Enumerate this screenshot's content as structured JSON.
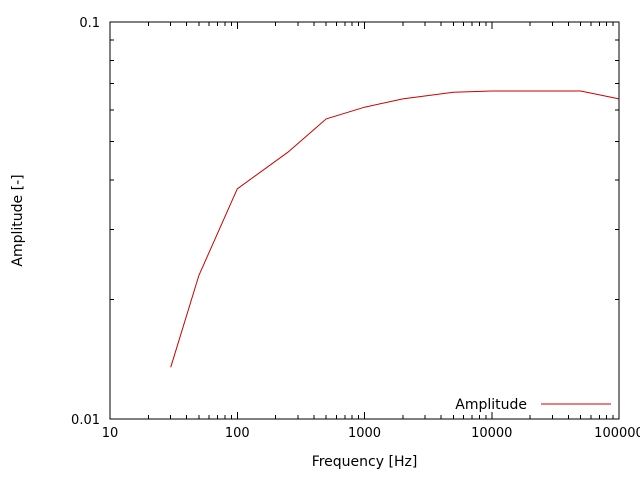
{
  "chart_data": {
    "type": "line",
    "title": "",
    "xlabel": "Frequency [Hz]",
    "ylabel": "Amplitude [-]",
    "xscale": "log",
    "yscale": "log",
    "xlim": [
      10,
      100000
    ],
    "ylim": [
      0.01,
      0.1
    ],
    "x_tick_values": [
      10,
      100,
      1000,
      10000,
      100000
    ],
    "x_tick_labels": [
      "10",
      "100",
      "1000",
      "10000",
      "100000"
    ],
    "y_tick_values": [
      0.01,
      0.1
    ],
    "y_tick_labels": [
      "0.01",
      "0.1"
    ],
    "grid": false,
    "legend": {
      "position": "inside-bottom-right",
      "entries": [
        {
          "label": "Amplitude",
          "color": "#cc0000"
        }
      ]
    },
    "series": [
      {
        "name": "Amplitude",
        "color": "#cc0000",
        "x": [
          30,
          50,
          100,
          250,
          500,
          1000,
          2000,
          5000,
          10000,
          20000,
          50000,
          100000
        ],
        "y": [
          0.0135,
          0.023,
          0.038,
          0.047,
          0.057,
          0.061,
          0.064,
          0.0665,
          0.067,
          0.067,
          0.067,
          0.064
        ]
      }
    ],
    "frame_color": "#000000",
    "background_color": "#ffffff"
  }
}
